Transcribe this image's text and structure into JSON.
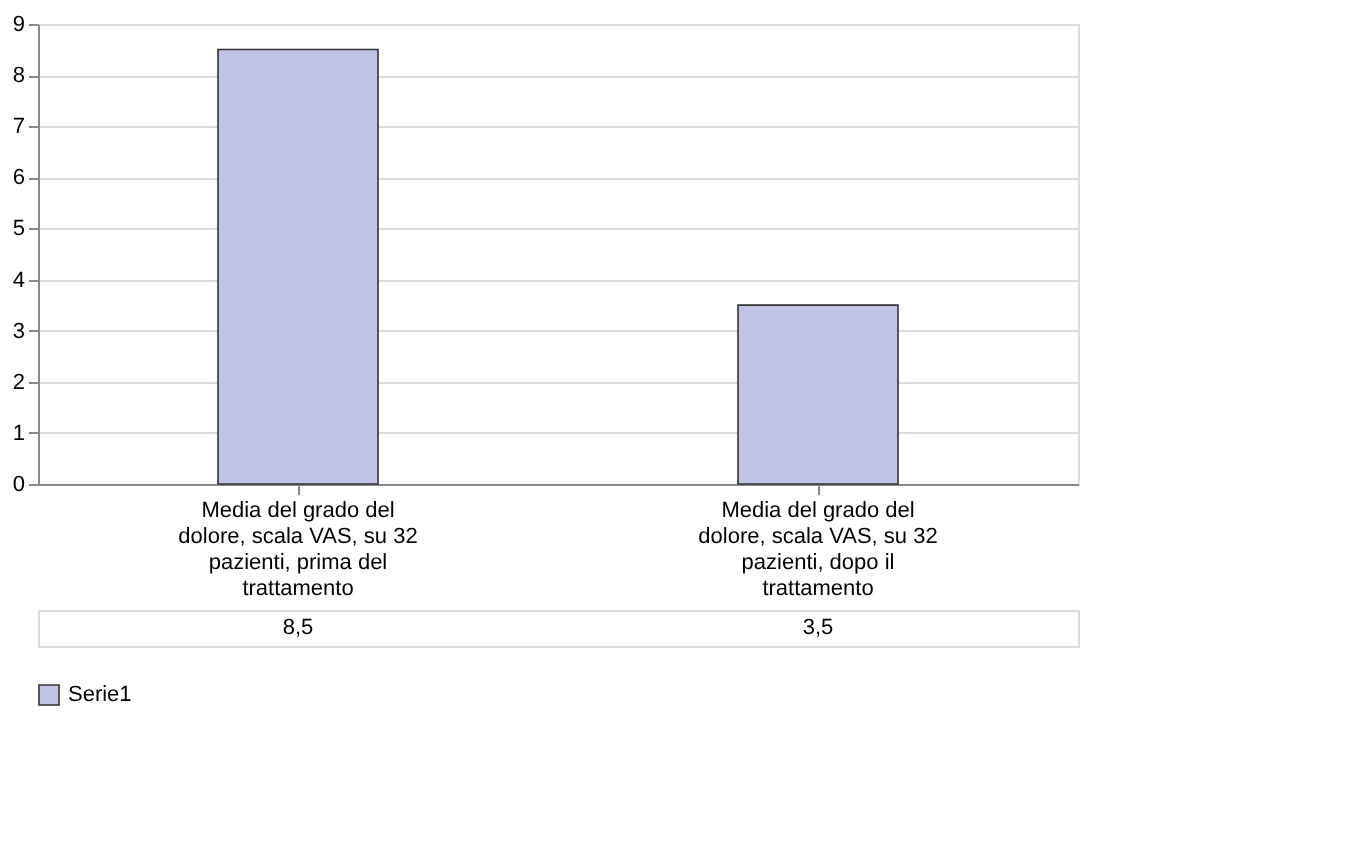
{
  "chart_data": {
    "type": "bar",
    "categories": [
      "Media del grado del dolore, scala VAS, su 32 pazienti, prima del trattamento",
      "Media del grado del dolore, scala VAS, su 32 pazienti, dopo il trattamento"
    ],
    "series": [
      {
        "name": "Serie1",
        "color": "#c0c4e6",
        "values": [
          8.5,
          3.5
        ],
        "value_labels": [
          "8,5",
          "3,5"
        ]
      }
    ],
    "ylim": [
      0,
      9
    ],
    "yticks": [
      0,
      1,
      2,
      3,
      4,
      5,
      6,
      7,
      8,
      9
    ],
    "grid": "y",
    "legend": "bottom"
  }
}
